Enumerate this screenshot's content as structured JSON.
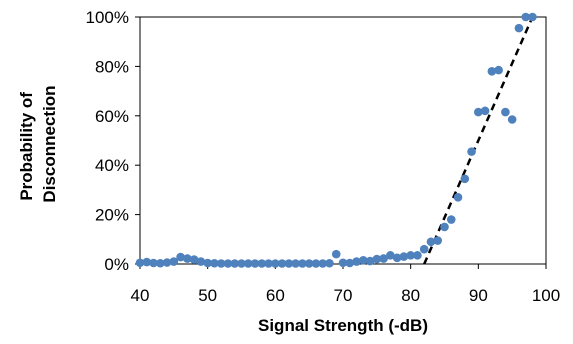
{
  "chart_data": {
    "type": "scatter",
    "title": "",
    "xlabel": "Signal Strength (-dB)",
    "ylabel_lines": [
      "Probability of",
      "Disconnection"
    ],
    "xlim": [
      40,
      100
    ],
    "ylim": [
      0,
      1
    ],
    "x_ticks": [
      40,
      50,
      60,
      70,
      80,
      90,
      100
    ],
    "x_tick_labels": [
      "40",
      "50",
      "60",
      "70",
      "80",
      "90",
      "100"
    ],
    "y_ticks": [
      0,
      0.2,
      0.4,
      0.6,
      0.8,
      1.0
    ],
    "y_tick_labels": [
      "0%",
      "20%",
      "40%",
      "60%",
      "80%",
      "100%"
    ],
    "grid": false,
    "legend": "none",
    "point_color": "#4f81bd",
    "trendline_color": "#000000",
    "trendline": {
      "style": "dashed",
      "points": [
        [
          82,
          0
        ],
        [
          98,
          1
        ]
      ]
    },
    "series": [
      {
        "x": [
          40,
          41,
          42,
          43,
          44,
          45,
          46,
          47,
          48,
          49,
          50,
          51,
          52,
          53,
          54,
          55,
          56,
          57,
          58,
          59,
          60,
          61,
          62,
          63,
          64,
          65,
          66,
          67,
          68,
          69,
          70,
          71,
          72,
          73,
          74,
          75,
          76,
          77,
          78,
          79,
          80,
          81,
          82,
          83,
          84,
          85,
          86,
          87,
          88,
          89,
          90,
          91,
          92,
          93,
          94,
          95,
          96,
          97,
          98
        ],
        "y": [
          0.005,
          0.008,
          0.004,
          0.003,
          0.006,
          0.01,
          0.028,
          0.022,
          0.018,
          0.01,
          0.004,
          0.003,
          0.002,
          0.002,
          0.002,
          0.002,
          0.002,
          0.002,
          0.002,
          0.002,
          0.002,
          0.002,
          0.002,
          0.002,
          0.002,
          0.002,
          0.002,
          0.002,
          0.003,
          0.04,
          0.005,
          0.004,
          0.01,
          0.015,
          0.012,
          0.02,
          0.022,
          0.035,
          0.025,
          0.03,
          0.035,
          0.035,
          0.06,
          0.09,
          0.095,
          0.15,
          0.18,
          0.27,
          0.345,
          0.455,
          0.615,
          0.62,
          0.78,
          0.785,
          0.615,
          0.585,
          0.955,
          1.0,
          1.0
        ]
      }
    ]
  }
}
